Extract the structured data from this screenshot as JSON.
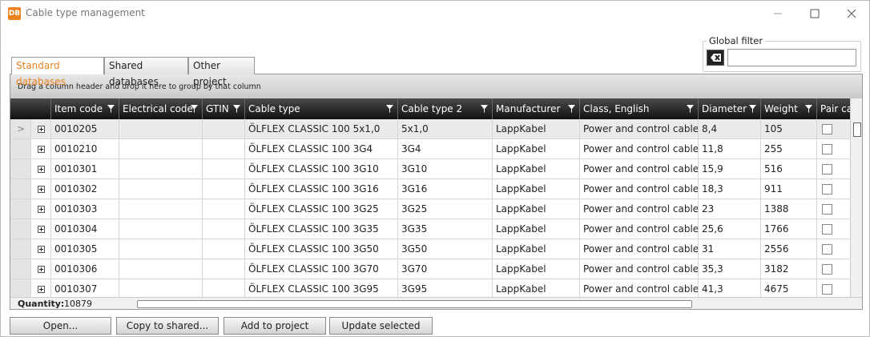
{
  "window": {
    "icon": "DB",
    "title": "Cable type management"
  },
  "global_filter": {
    "label": "Global filter"
  },
  "tabs": [
    "Standard databases",
    "Shared databases",
    "Other project"
  ],
  "grid": {
    "group_hint": "Drag a column header and drop it here to group by that column",
    "columns": [
      "Item code",
      "Electrical code",
      "GTIN",
      "Cable type",
      "Cable type 2",
      "Manufacturer",
      "Class, English",
      "Diameter",
      "Weight",
      "Pair ca"
    ],
    "rows": [
      [
        "0010205",
        null,
        null,
        "ÖLFLEX CLASSIC 100 5x1,0",
        "5x1,0",
        "LappKabel",
        "Power and control cable",
        "8,4",
        "105"
      ],
      [
        "0010210",
        null,
        null,
        "ÖLFLEX CLASSIC 100 3G4",
        "3G4",
        "LappKabel",
        "Power and control cable",
        "11,8",
        "255"
      ],
      [
        "0010301",
        null,
        null,
        "ÖLFLEX CLASSIC 100 3G10",
        "3G10",
        "LappKabel",
        "Power and control cable",
        "15,9",
        "516"
      ],
      [
        "0010302",
        null,
        null,
        "ÖLFLEX CLASSIC 100 3G16",
        "3G16",
        "LappKabel",
        "Power and control cable",
        "18,3",
        "911"
      ],
      [
        "0010303",
        null,
        null,
        "ÖLFLEX CLASSIC 100 3G25",
        "3G25",
        "LappKabel",
        "Power and control cable",
        "23",
        "1388"
      ],
      [
        "0010304",
        null,
        null,
        "ÖLFLEX CLASSIC 100 3G35",
        "3G35",
        "LappKabel",
        "Power and control cable",
        "25,6",
        "1766"
      ],
      [
        "0010305",
        null,
        null,
        "ÖLFLEX CLASSIC 100 3G50",
        "3G50",
        "LappKabel",
        "Power and control cable",
        "31",
        "2556"
      ],
      [
        "0010306",
        null,
        null,
        "ÖLFLEX CLASSIC 100 3G70",
        "3G70",
        "LappKabel",
        "Power and control cable",
        "35,3",
        "3182"
      ],
      [
        "0010307",
        null,
        null,
        "ÖLFLEX CLASSIC 100 3G95",
        "3G95",
        "LappKabel",
        "Power and control cable",
        "41,3",
        "4675"
      ]
    ],
    "quantity_label": "Quantity:",
    "quantity": "10879"
  },
  "buttons": [
    "Open...",
    "Copy to shared...",
    "Add to project",
    "Update selected"
  ]
}
